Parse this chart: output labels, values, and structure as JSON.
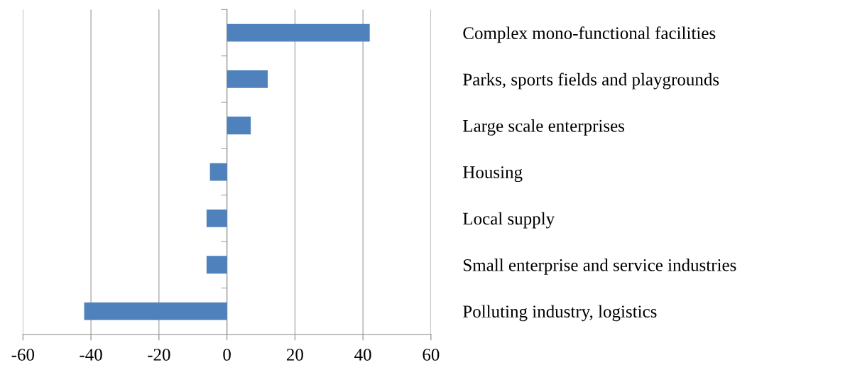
{
  "chart_data": {
    "type": "bar",
    "orientation": "horizontal",
    "categories": [
      "Complex mono-functional facilities",
      "Parks, sports fields and playgrounds",
      "Large scale enterprises",
      "Housing",
      "Local supply",
      "Small enterprise and service industries",
      "Polluting industry, logistics"
    ],
    "values": [
      42,
      12,
      7,
      -5,
      -6,
      -6,
      -42
    ],
    "color": "#4f81bd",
    "xlim": [
      -60,
      60
    ],
    "xticks": [
      -60,
      -40,
      -20,
      0,
      20,
      40,
      60
    ],
    "grid": "x"
  }
}
